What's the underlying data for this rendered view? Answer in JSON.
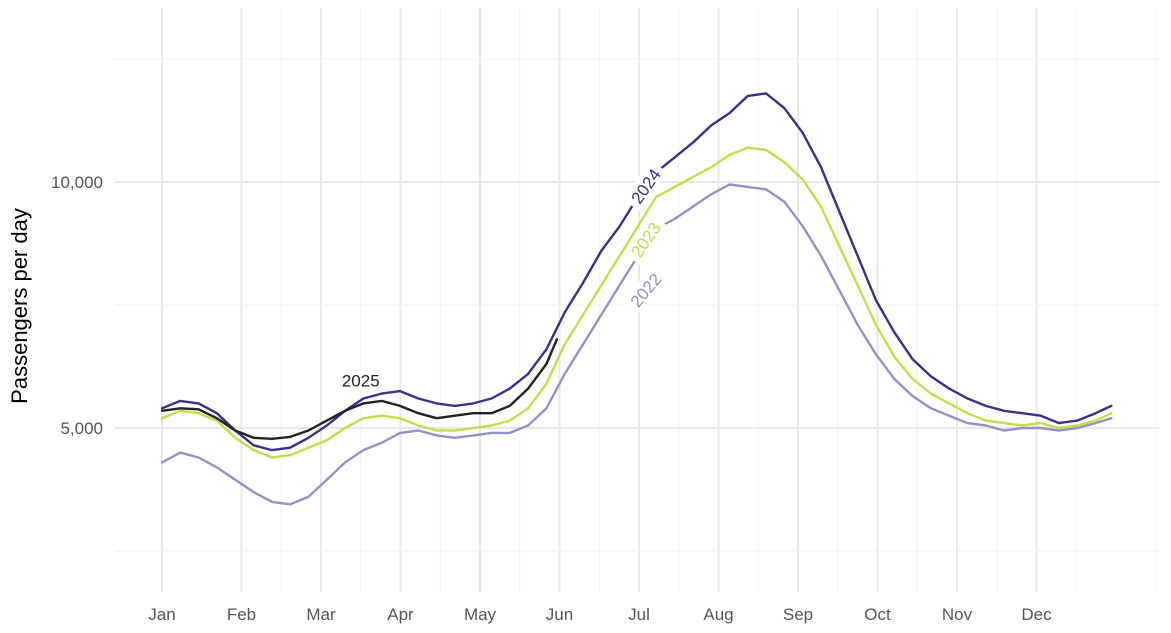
{
  "chart_data": {
    "type": "line",
    "title": "",
    "xlabel": "",
    "ylabel": "Passengers per day",
    "x_ticks": [
      "Jan",
      "Feb",
      "Mar",
      "Apr",
      "May",
      "Jun",
      "Jul",
      "Aug",
      "Sep",
      "Oct",
      "Nov",
      "Dec"
    ],
    "y_ticks": [
      {
        "value": 5000,
        "label": "5,000"
      },
      {
        "value": 10000,
        "label": "10,000"
      }
    ],
    "ylim": [
      2500,
      13500
    ],
    "grid": true,
    "legend": "direct labels on lines",
    "series": [
      {
        "name": "2022",
        "color": "#8f94c4",
        "points": [
          [
            1,
            4300
          ],
          [
            8,
            4500
          ],
          [
            15,
            4400
          ],
          [
            22,
            4200
          ],
          [
            29,
            3950
          ],
          [
            36,
            3700
          ],
          [
            43,
            3500
          ],
          [
            50,
            3450
          ],
          [
            57,
            3600
          ],
          [
            64,
            3950
          ],
          [
            71,
            4300
          ],
          [
            78,
            4550
          ],
          [
            85,
            4700
          ],
          [
            92,
            4900
          ],
          [
            99,
            4950
          ],
          [
            106,
            4850
          ],
          [
            113,
            4800
          ],
          [
            120,
            4850
          ],
          [
            127,
            4900
          ],
          [
            134,
            4900
          ],
          [
            141,
            5050
          ],
          [
            148,
            5400
          ],
          [
            155,
            6100
          ],
          [
            162,
            6700
          ],
          [
            169,
            7300
          ],
          [
            176,
            7900
          ],
          [
            183,
            8500
          ],
          [
            190,
            9050
          ],
          [
            197,
            9250
          ],
          [
            204,
            9500
          ],
          [
            211,
            9750
          ],
          [
            218,
            9950
          ],
          [
            225,
            9900
          ],
          [
            232,
            9850
          ],
          [
            239,
            9600
          ],
          [
            246,
            9100
          ],
          [
            253,
            8500
          ],
          [
            260,
            7800
          ],
          [
            267,
            7100
          ],
          [
            274,
            6500
          ],
          [
            281,
            6000
          ],
          [
            288,
            5650
          ],
          [
            295,
            5400
          ],
          [
            302,
            5250
          ],
          [
            309,
            5100
          ],
          [
            316,
            5050
          ],
          [
            323,
            4950
          ],
          [
            330,
            5000
          ],
          [
            337,
            5000
          ],
          [
            344,
            4950
          ],
          [
            351,
            5000
          ],
          [
            358,
            5100
          ],
          [
            364,
            5200
          ]
        ]
      },
      {
        "name": "2023",
        "color": "#c5dd4a",
        "points": [
          [
            1,
            5200
          ],
          [
            8,
            5350
          ],
          [
            15,
            5300
          ],
          [
            22,
            5150
          ],
          [
            29,
            4800
          ],
          [
            36,
            4550
          ],
          [
            43,
            4400
          ],
          [
            50,
            4450
          ],
          [
            57,
            4600
          ],
          [
            64,
            4750
          ],
          [
            71,
            5000
          ],
          [
            78,
            5200
          ],
          [
            85,
            5250
          ],
          [
            92,
            5200
          ],
          [
            99,
            5050
          ],
          [
            106,
            4950
          ],
          [
            113,
            4950
          ],
          [
            120,
            5000
          ],
          [
            127,
            5050
          ],
          [
            134,
            5150
          ],
          [
            141,
            5400
          ],
          [
            148,
            5900
          ],
          [
            155,
            6700
          ],
          [
            162,
            7300
          ],
          [
            169,
            7900
          ],
          [
            176,
            8500
          ],
          [
            183,
            9100
          ],
          [
            190,
            9700
          ],
          [
            197,
            9900
          ],
          [
            204,
            10100
          ],
          [
            211,
            10300
          ],
          [
            218,
            10550
          ],
          [
            225,
            10700
          ],
          [
            232,
            10650
          ],
          [
            239,
            10400
          ],
          [
            246,
            10050
          ],
          [
            253,
            9500
          ],
          [
            260,
            8700
          ],
          [
            267,
            7900
          ],
          [
            274,
            7100
          ],
          [
            281,
            6450
          ],
          [
            288,
            6000
          ],
          [
            295,
            5700
          ],
          [
            302,
            5500
          ],
          [
            309,
            5300
          ],
          [
            316,
            5150
          ],
          [
            323,
            5100
          ],
          [
            330,
            5050
          ],
          [
            337,
            5100
          ],
          [
            344,
            5000
          ],
          [
            351,
            5050
          ],
          [
            358,
            5150
          ],
          [
            364,
            5300
          ]
        ]
      },
      {
        "name": "2024",
        "color": "#3b2f8c",
        "points": [
          [
            1,
            5400
          ],
          [
            8,
            5550
          ],
          [
            15,
            5500
          ],
          [
            22,
            5300
          ],
          [
            29,
            4950
          ],
          [
            36,
            4650
          ],
          [
            43,
            4550
          ],
          [
            50,
            4600
          ],
          [
            57,
            4800
          ],
          [
            64,
            5050
          ],
          [
            71,
            5350
          ],
          [
            78,
            5600
          ],
          [
            85,
            5700
          ],
          [
            92,
            5750
          ],
          [
            99,
            5600
          ],
          [
            106,
            5500
          ],
          [
            113,
            5450
          ],
          [
            120,
            5500
          ],
          [
            127,
            5600
          ],
          [
            134,
            5800
          ],
          [
            141,
            6100
          ],
          [
            148,
            6600
          ],
          [
            155,
            7350
          ],
          [
            162,
            7950
          ],
          [
            169,
            8600
          ],
          [
            176,
            9100
          ],
          [
            183,
            9700
          ],
          [
            190,
            10200
          ],
          [
            197,
            10500
          ],
          [
            204,
            10800
          ],
          [
            211,
            11150
          ],
          [
            218,
            11400
          ],
          [
            225,
            11750
          ],
          [
            232,
            11800
          ],
          [
            239,
            11500
          ],
          [
            246,
            11000
          ],
          [
            253,
            10300
          ],
          [
            260,
            9400
          ],
          [
            267,
            8500
          ],
          [
            274,
            7600
          ],
          [
            281,
            6950
          ],
          [
            288,
            6400
          ],
          [
            295,
            6050
          ],
          [
            302,
            5800
          ],
          [
            309,
            5600
          ],
          [
            316,
            5450
          ],
          [
            323,
            5350
          ],
          [
            330,
            5300
          ],
          [
            337,
            5250
          ],
          [
            344,
            5100
          ],
          [
            351,
            5150
          ],
          [
            358,
            5300
          ],
          [
            364,
            5450
          ]
        ]
      },
      {
        "name": "2025",
        "color": "#222222",
        "points": [
          [
            1,
            5350
          ],
          [
            8,
            5400
          ],
          [
            15,
            5380
          ],
          [
            22,
            5200
          ],
          [
            29,
            4950
          ],
          [
            36,
            4800
          ],
          [
            43,
            4780
          ],
          [
            50,
            4820
          ],
          [
            57,
            4950
          ],
          [
            64,
            5150
          ],
          [
            71,
            5350
          ],
          [
            78,
            5500
          ],
          [
            85,
            5550
          ],
          [
            92,
            5450
          ],
          [
            99,
            5300
          ],
          [
            106,
            5200
          ],
          [
            113,
            5250
          ],
          [
            120,
            5300
          ],
          [
            127,
            5300
          ],
          [
            134,
            5450
          ],
          [
            141,
            5800
          ],
          [
            148,
            6300
          ],
          [
            152,
            6800
          ]
        ]
      }
    ]
  }
}
